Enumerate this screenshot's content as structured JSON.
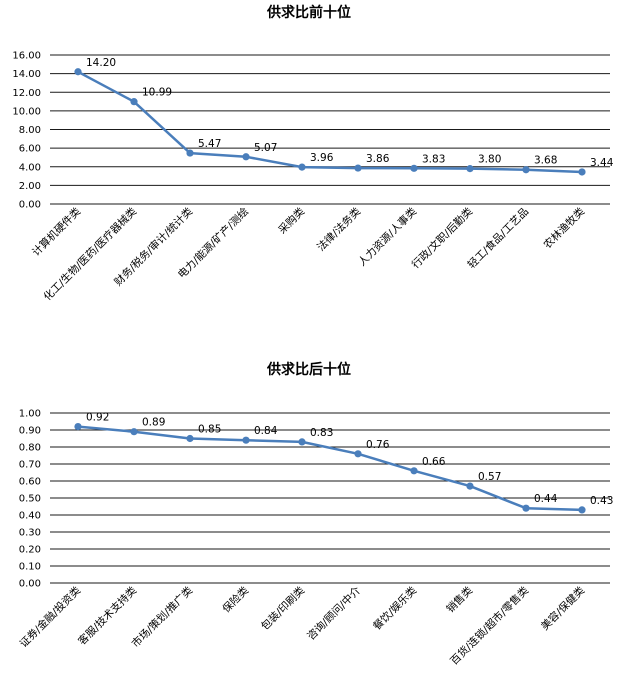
{
  "chart_data": [
    {
      "type": "line",
      "title": "供求比前十位",
      "categories": [
        "计算机硬件类",
        "化工/生物/医药/医疗器械类",
        "财务/税务/审计/统计类",
        "电力/能源/矿产/测绘",
        "采购类",
        "法律/法务类",
        "人力资源/人事类",
        "行政/文职/后勤类",
        "轻工/食品/工艺品",
        "农林渔牧类"
      ],
      "values": [
        14.2,
        10.99,
        5.47,
        5.07,
        3.96,
        3.86,
        3.83,
        3.8,
        3.68,
        3.44
      ],
      "value_labels": [
        "14.20",
        "10.99",
        "5.47",
        "5.07",
        "3.96",
        "3.86",
        "3.83",
        "3.80",
        "3.68",
        "3.44"
      ],
      "ylim": [
        0,
        16
      ],
      "yticks": [
        "0.00",
        "2.00",
        "4.00",
        "6.00",
        "8.00",
        "10.00",
        "12.00",
        "14.00",
        "16.00"
      ],
      "grid": true,
      "line_color": "#4a7ebb"
    },
    {
      "type": "line",
      "title": "供求比后十位",
      "categories": [
        "证券/金融/投资类",
        "客服/技术支持类",
        "市场/策划/推广类",
        "保险类",
        "包装/印刷类",
        "咨询/顾问/中介",
        "餐饮/娱乐类",
        "销售类",
        "百货/连锁/超市/零售类",
        "美容/保健类"
      ],
      "values": [
        0.92,
        0.89,
        0.85,
        0.84,
        0.83,
        0.76,
        0.66,
        0.57,
        0.44,
        0.43
      ],
      "value_labels": [
        "0.92",
        "0.89",
        "0.85",
        "0.84",
        "0.83",
        "0.76",
        "0.66",
        "0.57",
        "0.44",
        "0.43"
      ],
      "ylim": [
        0,
        1
      ],
      "yticks": [
        "0.00",
        "0.10",
        "0.20",
        "0.30",
        "0.40",
        "0.50",
        "0.60",
        "0.70",
        "0.80",
        "0.90",
        "1.00"
      ],
      "grid": true,
      "line_color": "#4a7ebb"
    }
  ]
}
